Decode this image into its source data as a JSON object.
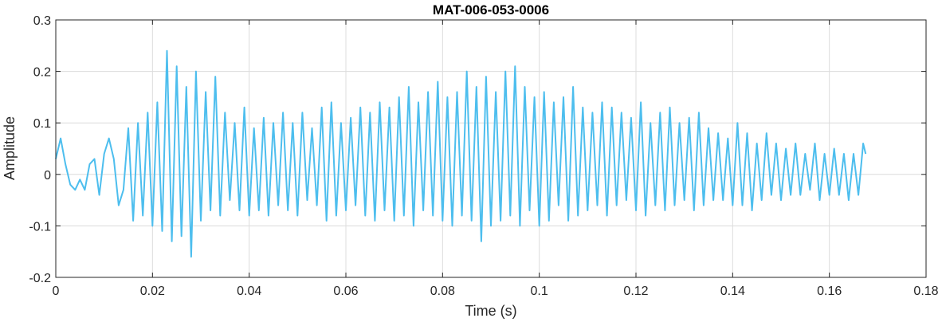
{
  "chart_data": {
    "type": "line",
    "title": "MAT-006-053-0006",
    "xlabel": "Time (s)",
    "ylabel": "Amplitude",
    "xlim": [
      0,
      0.18
    ],
    "ylim": [
      -0.2,
      0.3
    ],
    "x_ticks": [
      0,
      0.02,
      0.04,
      0.06,
      0.08,
      0.1,
      0.12,
      0.14,
      0.16,
      0.18
    ],
    "x_tick_labels": [
      "0",
      "0.02",
      "0.04",
      "0.06",
      "0.08",
      "0.1",
      "0.12",
      "0.14",
      "0.16",
      "0.18"
    ],
    "y_ticks": [
      -0.2,
      -0.1,
      0,
      0.1,
      0.2,
      0.3
    ],
    "y_tick_labels": [
      "-0.2",
      "-0.1",
      "0",
      "0.1",
      "0.2",
      "0.3"
    ],
    "grid": true,
    "line_color": "#4DBEEE",
    "series": [
      {
        "x": [
          0,
          0.001,
          0.002,
          0.003,
          0.004,
          0.005,
          0.006,
          0.007,
          0.008,
          0.009,
          0.01,
          0.011,
          0.012,
          0.013,
          0.014,
          0.015,
          0.016,
          0.017,
          0.018,
          0.019,
          0.02,
          0.021,
          0.022,
          0.023,
          0.024,
          0.025,
          0.026,
          0.027,
          0.028,
          0.029,
          0.03,
          0.031,
          0.032,
          0.033,
          0.034,
          0.035,
          0.036,
          0.037,
          0.038,
          0.039,
          0.04,
          0.041,
          0.042,
          0.043,
          0.044,
          0.045,
          0.046,
          0.047,
          0.048,
          0.049,
          0.05,
          0.051,
          0.052,
          0.053,
          0.054,
          0.055,
          0.056,
          0.057,
          0.058,
          0.059,
          0.06,
          0.061,
          0.062,
          0.063,
          0.064,
          0.065,
          0.066,
          0.067,
          0.068,
          0.069,
          0.07,
          0.071,
          0.072,
          0.073,
          0.074,
          0.075,
          0.076,
          0.077,
          0.078,
          0.079,
          0.08,
          0.081,
          0.082,
          0.083,
          0.084,
          0.085,
          0.086,
          0.087,
          0.088,
          0.089,
          0.09,
          0.091,
          0.092,
          0.093,
          0.094,
          0.095,
          0.096,
          0.097,
          0.098,
          0.099,
          0.1,
          0.101,
          0.102,
          0.103,
          0.104,
          0.105,
          0.106,
          0.107,
          0.108,
          0.109,
          0.11,
          0.111,
          0.112,
          0.113,
          0.114,
          0.115,
          0.116,
          0.117,
          0.118,
          0.119,
          0.12,
          0.121,
          0.122,
          0.123,
          0.124,
          0.125,
          0.126,
          0.127,
          0.128,
          0.129,
          0.13,
          0.131,
          0.132,
          0.133,
          0.134,
          0.135,
          0.136,
          0.137,
          0.138,
          0.139,
          0.14,
          0.141,
          0.142,
          0.143,
          0.144,
          0.145,
          0.146,
          0.147,
          0.148,
          0.149,
          0.15,
          0.151,
          0.152,
          0.153,
          0.154,
          0.155,
          0.156,
          0.157,
          0.158,
          0.159,
          0.16,
          0.161,
          0.162,
          0.163,
          0.164,
          0.165,
          0.166,
          0.167,
          0.1675
        ],
        "y": [
          0.03,
          0.07,
          0.02,
          -0.02,
          -0.03,
          -0.01,
          -0.03,
          0.02,
          0.03,
          -0.04,
          0.04,
          0.07,
          0.03,
          -0.06,
          -0.03,
          0.09,
          -0.09,
          0.1,
          -0.08,
          0.12,
          -0.1,
          0.14,
          -0.11,
          0.24,
          -0.13,
          0.21,
          -0.12,
          0.17,
          -0.16,
          0.2,
          -0.09,
          0.16,
          -0.07,
          0.19,
          -0.08,
          0.12,
          -0.05,
          0.1,
          -0.07,
          0.13,
          -0.08,
          0.09,
          -0.07,
          0.11,
          -0.08,
          0.1,
          -0.06,
          0.12,
          -0.07,
          0.1,
          -0.08,
          0.12,
          -0.05,
          0.09,
          -0.06,
          0.13,
          -0.09,
          0.14,
          -0.08,
          0.1,
          -0.07,
          0.11,
          -0.06,
          0.13,
          -0.08,
          0.12,
          -0.09,
          0.14,
          -0.07,
          0.13,
          -0.09,
          0.15,
          -0.08,
          0.17,
          -0.1,
          0.14,
          -0.07,
          0.16,
          -0.08,
          0.18,
          -0.09,
          0.15,
          -0.1,
          0.16,
          -0.08,
          0.2,
          -0.09,
          0.17,
          -0.13,
          0.19,
          -0.1,
          0.16,
          -0.09,
          0.2,
          -0.08,
          0.21,
          -0.1,
          0.17,
          -0.07,
          0.15,
          -0.1,
          0.16,
          -0.09,
          0.14,
          -0.06,
          0.15,
          -0.09,
          0.17,
          -0.08,
          0.13,
          -0.07,
          0.12,
          -0.06,
          0.14,
          -0.08,
          0.13,
          -0.06,
          0.12,
          -0.05,
          0.11,
          -0.07,
          0.14,
          -0.08,
          0.1,
          -0.06,
          0.12,
          -0.07,
          0.13,
          -0.06,
          0.1,
          -0.05,
          0.11,
          -0.07,
          0.12,
          -0.06,
          0.09,
          -0.05,
          0.08,
          -0.05,
          0.07,
          -0.06,
          0.1,
          -0.06,
          0.08,
          -0.07,
          0.06,
          -0.05,
          0.08,
          -0.04,
          0.06,
          -0.05,
          0.05,
          -0.04,
          0.06,
          -0.04,
          0.04,
          -0.03,
          0.06,
          -0.05,
          0.04,
          -0.04,
          0.05,
          -0.04,
          0.04,
          -0.05,
          0.04,
          -0.04,
          0.06,
          0.04
        ]
      }
    ]
  }
}
